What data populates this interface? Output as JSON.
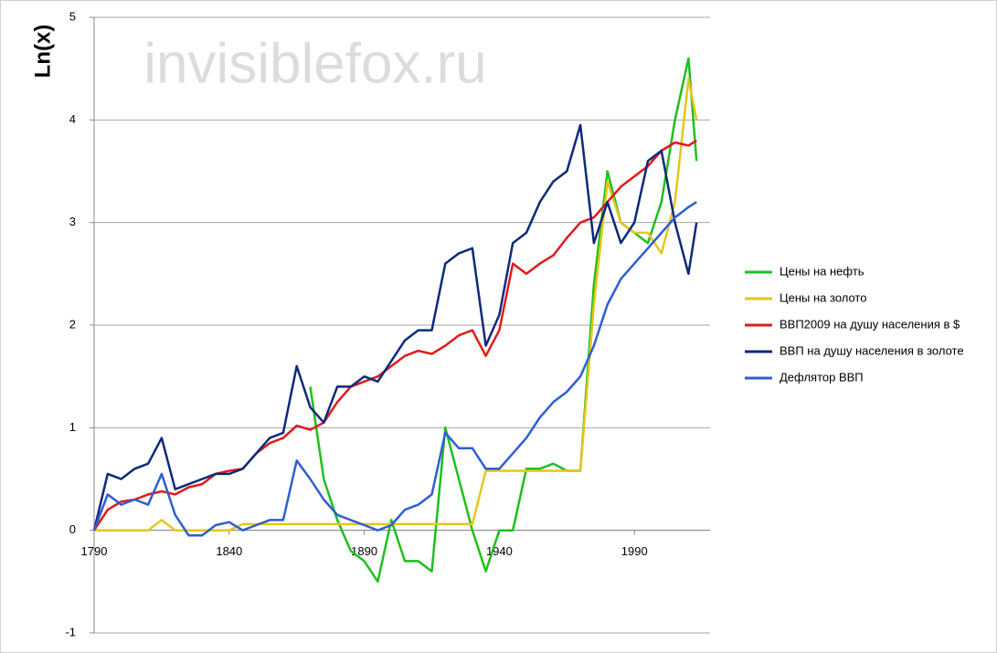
{
  "chart_data": {
    "type": "line",
    "watermark": "invisiblefox.ru",
    "y_label": "Ln(x)",
    "x": [
      1790,
      1795,
      1800,
      1805,
      1810,
      1815,
      1820,
      1825,
      1830,
      1835,
      1840,
      1845,
      1850,
      1855,
      1860,
      1865,
      1870,
      1875,
      1880,
      1885,
      1890,
      1895,
      1900,
      1905,
      1910,
      1915,
      1920,
      1925,
      1930,
      1935,
      1940,
      1945,
      1950,
      1955,
      1960,
      1965,
      1970,
      1975,
      1980,
      1985,
      1990,
      1995,
      2000,
      2005,
      2010,
      2013
    ],
    "xlim": [
      1790,
      2018
    ],
    "xticks": [
      1790,
      1840,
      1890,
      1940,
      1990
    ],
    "ylim": [
      -1,
      5
    ],
    "yticks": [
      -1,
      0,
      1,
      2,
      3,
      4,
      5
    ],
    "grid": true,
    "legend": "right",
    "series": [
      {
        "name": "Цены на нефть",
        "color": "#1fbf1f",
        "values": [
          null,
          null,
          null,
          null,
          null,
          null,
          null,
          null,
          null,
          null,
          null,
          null,
          null,
          null,
          null,
          null,
          1.4,
          0.5,
          0.1,
          -0.2,
          -0.3,
          -0.5,
          0.1,
          -0.3,
          -0.3,
          -0.4,
          1.0,
          0.5,
          0.0,
          -0.4,
          0.0,
          0.0,
          0.6,
          0.6,
          0.65,
          0.58,
          0.58,
          2.4,
          3.5,
          3.0,
          2.9,
          2.8,
          3.2,
          4.0,
          4.6,
          3.6
        ]
      },
      {
        "name": "Цены на золото",
        "color": "#e6c619",
        "values": [
          0,
          0,
          0,
          0,
          0,
          0.1,
          0,
          0,
          0,
          0,
          0,
          0.06,
          0.06,
          0.06,
          0.06,
          0.06,
          0.06,
          0.06,
          0.06,
          0.06,
          0.06,
          0.06,
          0.06,
          0.06,
          0.06,
          0.06,
          0.06,
          0.06,
          0.06,
          0.58,
          0.58,
          0.58,
          0.58,
          0.58,
          0.58,
          0.58,
          0.58,
          2.2,
          3.4,
          3.0,
          2.9,
          2.9,
          2.7,
          3.2,
          4.4,
          4.0
        ]
      },
      {
        "name": "ВВП2009 на душу населения в $",
        "color": "#e01b1b",
        "values": [
          0,
          0.2,
          0.28,
          0.3,
          0.35,
          0.38,
          0.35,
          0.42,
          0.45,
          0.55,
          0.58,
          0.6,
          0.75,
          0.85,
          0.9,
          1.02,
          0.98,
          1.05,
          1.25,
          1.4,
          1.45,
          1.5,
          1.6,
          1.7,
          1.75,
          1.72,
          1.8,
          1.9,
          1.95,
          1.7,
          1.95,
          2.6,
          2.5,
          2.6,
          2.68,
          2.85,
          3.0,
          3.05,
          3.2,
          3.35,
          3.45,
          3.55,
          3.7,
          3.78,
          3.75,
          3.8
        ]
      },
      {
        "name": "ВВП на душу населения в золоте",
        "color": "#0d2a7a",
        "values": [
          0,
          0.55,
          0.5,
          0.6,
          0.65,
          0.9,
          0.4,
          0.45,
          0.5,
          0.55,
          0.55,
          0.6,
          0.75,
          0.9,
          0.95,
          1.6,
          1.2,
          1.05,
          1.4,
          1.4,
          1.5,
          1.45,
          1.65,
          1.85,
          1.95,
          1.95,
          2.6,
          2.7,
          2.75,
          1.8,
          2.1,
          2.8,
          2.9,
          3.2,
          3.4,
          3.5,
          3.95,
          2.8,
          3.2,
          2.8,
          3.0,
          3.6,
          3.7,
          3.0,
          2.5,
          3.0
        ]
      },
      {
        "name": "Дефлятор ВВП",
        "color": "#2e5fd0",
        "values": [
          0,
          0.35,
          0.25,
          0.3,
          0.25,
          0.55,
          0.15,
          -0.05,
          -0.05,
          0.05,
          0.08,
          0,
          0.05,
          0.1,
          0.1,
          0.68,
          0.5,
          0.3,
          0.15,
          0.1,
          0.05,
          0,
          0.05,
          0.2,
          0.25,
          0.35,
          0.95,
          0.8,
          0.8,
          0.6,
          0.6,
          0.75,
          0.9,
          1.1,
          1.25,
          1.35,
          1.5,
          1.8,
          2.2,
          2.45,
          2.6,
          2.75,
          2.9,
          3.05,
          3.15,
          3.2
        ]
      }
    ]
  }
}
